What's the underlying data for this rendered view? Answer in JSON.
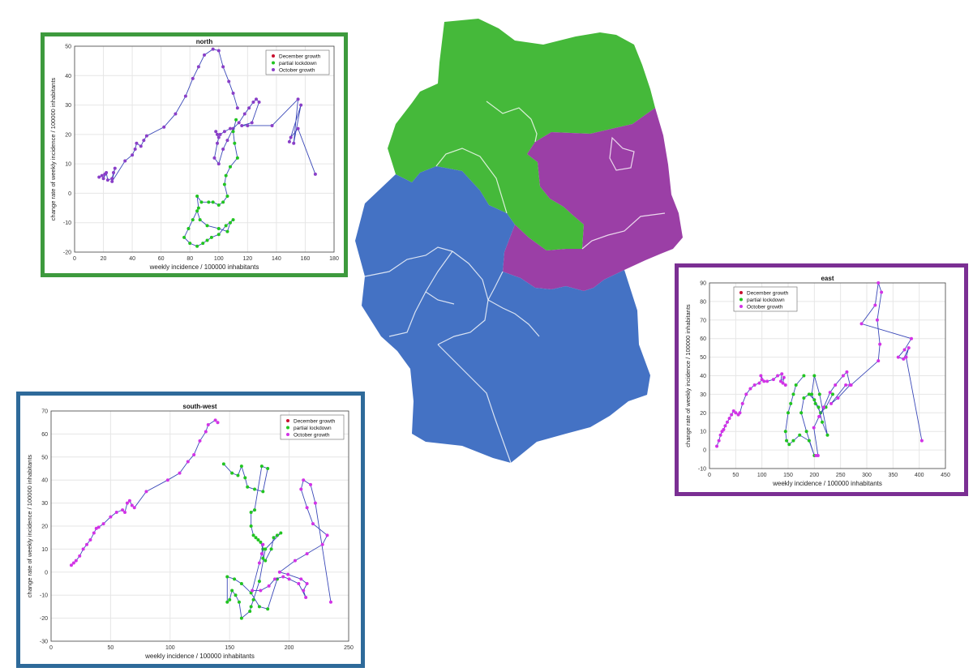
{
  "colors": {
    "north_frame": "#3d9a3d",
    "east_frame": "#7b2f93",
    "southwest_frame": "#2e6a9a",
    "map_north": "#45b93a",
    "map_east": "#9b3fa6",
    "map_southwest": "#4472c4",
    "line": "#3a48b8",
    "dec": "#c8102e",
    "lock": "#21c421",
    "oct_north": "#8a3fc8",
    "oct_other": "#d233e6"
  },
  "chart_data": [
    {
      "id": "north",
      "type": "scatter",
      "title": "north",
      "xlabel": "weekly incidence / 100000 inhabitants",
      "ylabel": "change rate of weekly incidence / 100000 inhabitants",
      "xlim": [
        0,
        180
      ],
      "ylim": [
        -20,
        50
      ],
      "xticks": [
        "0",
        "20",
        "40",
        "60",
        "80",
        "100",
        "120",
        "140",
        "160",
        "180"
      ],
      "yticks": [
        "-20",
        "-10",
        "0",
        "10",
        "20",
        "30",
        "40",
        "50"
      ],
      "grid": true,
      "legend_position": "top-right",
      "legend": [
        "December growth",
        "partial lockdown",
        "October growth"
      ],
      "series": [
        {
          "name": "October growth",
          "color_key": "oct_north",
          "x": [
            17,
            19,
            21,
            20,
            22,
            23,
            26,
            27,
            28,
            26,
            35,
            40,
            42,
            43,
            46,
            48,
            50,
            62,
            70,
            77,
            82,
            86,
            90,
            96,
            100,
            103,
            107,
            110,
            113
          ],
          "y": [
            5.5,
            6,
            6.5,
            5,
            7,
            4.5,
            5,
            7,
            8.5,
            4,
            11,
            13,
            15,
            17,
            16,
            18,
            19.5,
            22.5,
            27,
            33,
            39,
            43,
            47,
            49,
            48.5,
            43,
            38,
            34,
            29
          ]
        },
        {
          "name": "December growth",
          "color_key": "oct_north",
          "x": [
            108,
            104,
            101,
            99,
            98,
            100,
            99,
            97,
            100,
            103,
            106,
            110,
            114,
            118,
            121,
            124,
            126,
            128,
            123,
            116,
            120,
            137,
            155,
            152,
            157,
            149,
            150,
            155,
            167
          ],
          "y": [
            22,
            21,
            20,
            20,
            21,
            19,
            17,
            12,
            10,
            15,
            18,
            22,
            24,
            27,
            29,
            31,
            32,
            31,
            24,
            23,
            23,
            23,
            32,
            17,
            30,
            17.5,
            19,
            22,
            6.5
          ]
        },
        {
          "name": "partial lockdown",
          "color_key": "lock",
          "x": [
            112,
            110,
            111,
            113,
            108,
            105,
            104,
            106,
            103,
            100,
            96,
            93,
            88,
            85,
            86,
            82,
            79,
            76,
            80,
            85,
            89,
            92,
            95,
            100,
            105,
            110,
            108,
            106,
            100,
            92,
            87,
            85
          ],
          "y": [
            25,
            21,
            17,
            12,
            9,
            6,
            3,
            -1,
            -3,
            -4,
            -3,
            -3,
            -3,
            -1,
            -5,
            -9,
            -12,
            -15,
            -17,
            -18,
            -17,
            -16,
            -15,
            -14,
            -11,
            -9,
            -10,
            -13,
            -12,
            -11,
            -9,
            -6
          ]
        }
      ]
    },
    {
      "id": "east",
      "type": "scatter",
      "title": "east",
      "xlabel": "weekly incidence / 100000 inhabitants",
      "ylabel": "change rate of weekly incidence / 100000 inhabitants",
      "xlim": [
        0,
        450
      ],
      "ylim": [
        -10,
        90
      ],
      "xticks": [
        "0",
        "50",
        "100",
        "150",
        "200",
        "250",
        "300",
        "350",
        "400",
        "450"
      ],
      "yticks": [
        "-10",
        "0",
        "10",
        "20",
        "30",
        "40",
        "50",
        "60",
        "70",
        "80",
        "90"
      ],
      "grid": true,
      "legend_position": "top-left",
      "legend": [
        "December growth",
        "partial lockdown",
        "October growth"
      ],
      "series": [
        {
          "name": "October growth",
          "color_key": "oct_other",
          "x": [
            14,
            18,
            21,
            24,
            27,
            30,
            34,
            38,
            42,
            46,
            50,
            55,
            58,
            63,
            70,
            78,
            86,
            95,
            100,
            98,
            104,
            110,
            122,
            130,
            138,
            136,
            142,
            140,
            145
          ],
          "y": [
            2,
            5,
            8,
            10,
            11,
            13,
            15,
            17,
            19,
            21,
            20,
            19,
            20,
            25,
            30,
            33,
            35,
            36,
            38,
            40,
            37,
            37,
            38,
            40,
            41,
            37,
            39,
            36,
            35
          ]
        },
        {
          "name": "partial lockdown",
          "color_key": "lock",
          "x": [
            180,
            165,
            160,
            155,
            150,
            145,
            147,
            152,
            160,
            172,
            190,
            200,
            185,
            175,
            180,
            190,
            200,
            208,
            215,
            225,
            210,
            200,
            195,
            202,
            212,
            222,
            235
          ],
          "y": [
            40,
            35,
            30,
            25,
            20,
            10,
            5,
            3,
            5,
            8,
            5,
            -3,
            10,
            20,
            28,
            30,
            27,
            23,
            15,
            8,
            30,
            40,
            30,
            25,
            20,
            23,
            30
          ]
        },
        {
          "name": "December growth",
          "color_key": "oct_other",
          "x": [
            203,
            207,
            199,
            209,
            218,
            230,
            240,
            255,
            262,
            268,
            245,
            232,
            260,
            270,
            322,
            325,
            320,
            328,
            322,
            316,
            290,
            385,
            372,
            360,
            370,
            380,
            375,
            405
          ],
          "y": [
            -3,
            -3,
            12,
            18,
            23,
            31,
            35,
            40,
            42,
            35,
            28,
            25,
            35,
            35,
            48,
            57,
            70,
            85,
            90,
            78,
            68,
            60,
            54,
            50,
            49,
            55,
            50,
            5
          ]
        }
      ]
    },
    {
      "id": "south-west",
      "type": "scatter",
      "title": "south-west",
      "xlabel": "weekly incidence / 100000 inhabitants",
      "ylabel": "change rate of weekly incidence / 100000 inhabitants",
      "xlim": [
        0,
        250
      ],
      "ylim": [
        -30,
        70
      ],
      "xticks": [
        "0",
        "50",
        "100",
        "150",
        "200",
        "250"
      ],
      "yticks": [
        "-30",
        "-20",
        "-10",
        "0",
        "10",
        "20",
        "30",
        "40",
        "50",
        "60",
        "70"
      ],
      "grid": true,
      "legend_position": "top-right",
      "legend": [
        "December growth",
        "partial lockdown",
        "October growth"
      ],
      "series": [
        {
          "name": "October growth",
          "color_key": "oct_other",
          "x": [
            17,
            19,
            21,
            24,
            27,
            30,
            33,
            36,
            38,
            40,
            44,
            50,
            55,
            60,
            62,
            64,
            66,
            68,
            70,
            80,
            98,
            108,
            115,
            120,
            125,
            130,
            132,
            138,
            140
          ],
          "y": [
            3,
            4,
            5,
            7,
            10,
            12,
            14,
            17,
            19,
            19.5,
            21,
            24,
            26,
            27,
            26,
            30,
            31,
            29,
            28,
            35,
            40,
            43,
            48,
            51,
            57,
            61,
            64,
            66,
            65
          ]
        },
        {
          "name": "partial lockdown",
          "color_key": "lock",
          "x": [
            145,
            152,
            157,
            160,
            163,
            165,
            171,
            178,
            182,
            177,
            171,
            168,
            168,
            170,
            172,
            174,
            176,
            178,
            178,
            180,
            185,
            187,
            190,
            193,
            180,
            175,
            170,
            168,
            167,
            160,
            158,
            155,
            152,
            150,
            148,
            148,
            154,
            160,
            168,
            175,
            182,
            190
          ],
          "y": [
            47,
            43,
            42,
            46,
            41,
            37,
            36,
            35,
            45,
            46,
            27,
            26,
            20,
            16,
            15,
            14,
            13,
            10,
            6,
            5,
            10,
            15,
            16,
            17,
            10,
            -4,
            -12,
            -15,
            -17,
            -20,
            -13,
            -10,
            -8,
            -12,
            -13,
            -2,
            -3,
            -5,
            -9,
            -15,
            -16,
            -3
          ]
        },
        {
          "name": "December growth",
          "color_key": "oct_other",
          "x": [
            178,
            177,
            175,
            169,
            176,
            183,
            188,
            195,
            200,
            208,
            214,
            212,
            215,
            210,
            199,
            192,
            205,
            215,
            228,
            232,
            220,
            215,
            210,
            212,
            218,
            222,
            235
          ],
          "y": [
            12,
            8,
            4,
            -8,
            -8,
            -6,
            -3,
            -2,
            -3,
            -5,
            -11,
            -8,
            -5,
            -3,
            -1,
            0,
            5,
            8,
            12,
            16,
            21,
            28,
            36,
            40,
            38,
            30,
            -13
          ]
        }
      ]
    }
  ]
}
